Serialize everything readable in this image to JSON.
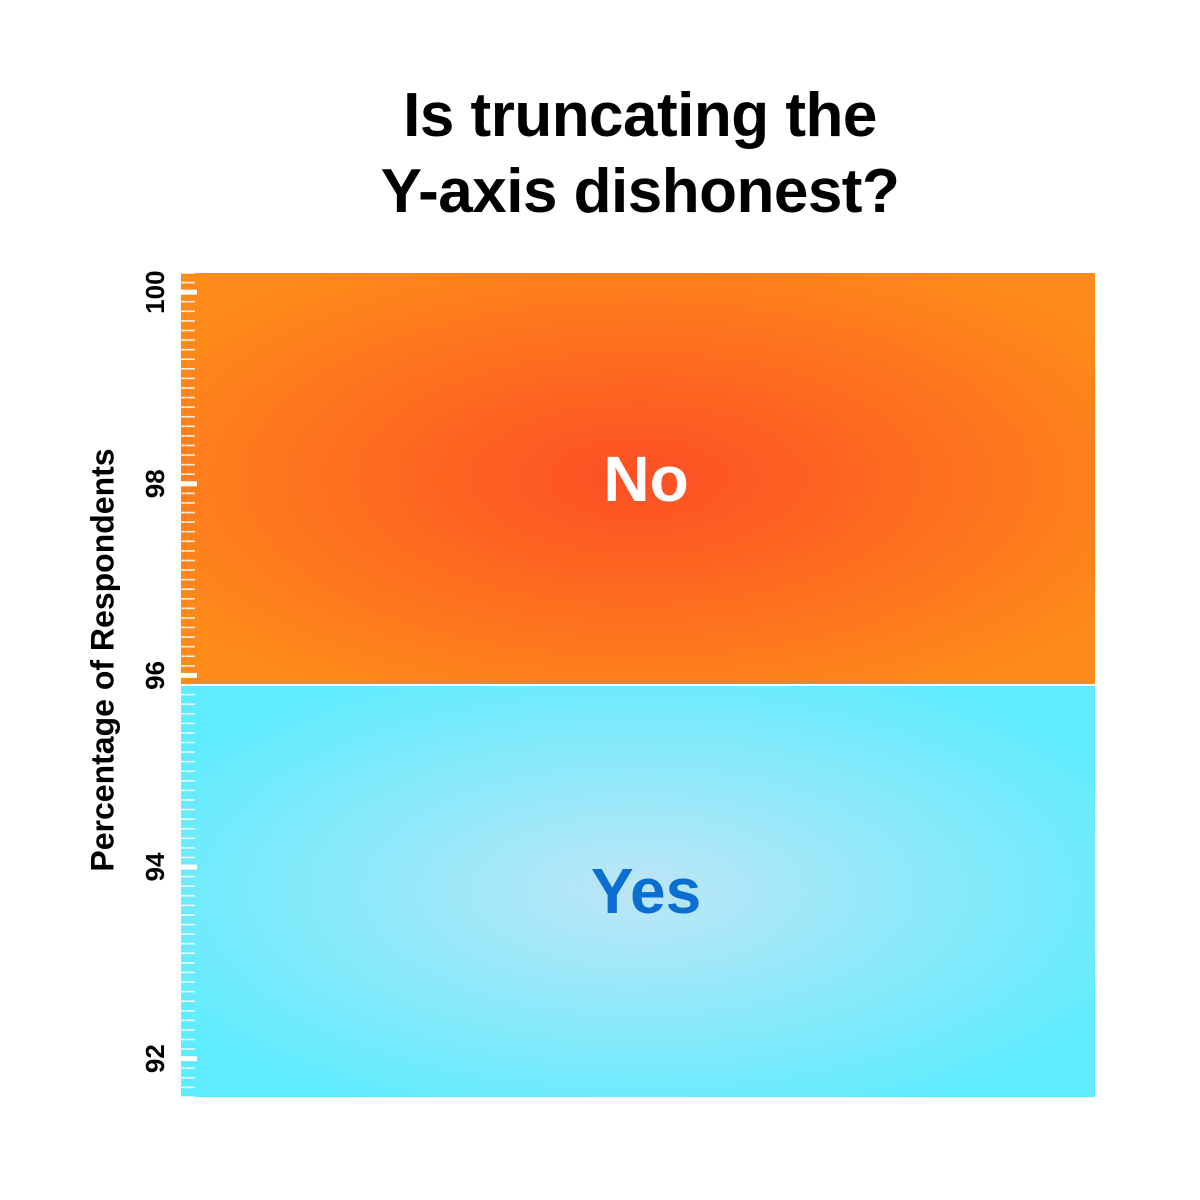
{
  "chart_data": {
    "type": "bar",
    "stacked": true,
    "title_lines": [
      "Is truncating the",
      "Y-axis dishonest?"
    ],
    "ylabel": "Percentage of Respondents",
    "xlabel": "",
    "ylim": [
      91.6,
      100.2
    ],
    "yticks": [
      92,
      94,
      96,
      98,
      100
    ],
    "minor_tick_step": 0.1,
    "grid": false,
    "legend": "none",
    "segments": [
      {
        "name": "Yes",
        "from": 91.6,
        "to": 95.9,
        "colors": {
          "center": "#bde6f6",
          "edge": "#5eecfe",
          "label": "#0a6fd0"
        }
      },
      {
        "name": "No",
        "from": 95.9,
        "to": 100.2,
        "colors": {
          "center": "#fd4f24",
          "edge": "#fe8a1a",
          "label": "#ffffff"
        }
      }
    ],
    "colors": {
      "tick": "#ffffff",
      "divider": "#ffffff"
    }
  }
}
